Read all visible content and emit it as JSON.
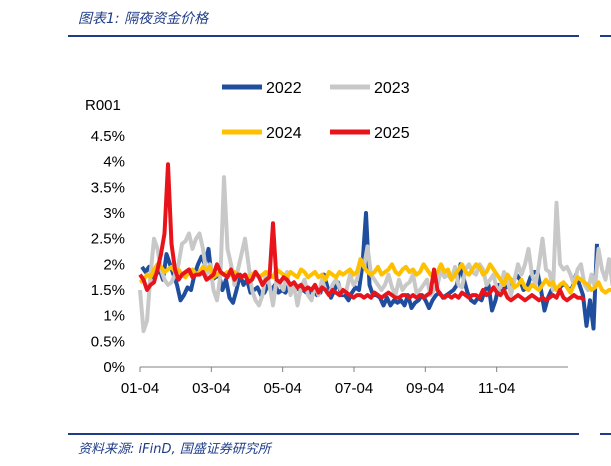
{
  "header": {
    "title": "图表1:  隔夜资金价格"
  },
  "footer": {
    "source": "资料来源:  iFinD,  国盛证券研究所"
  },
  "chart_data": {
    "type": "line",
    "ylabel": "R001",
    "ylim": [
      0,
      4.5
    ],
    "yticks": [
      "0%",
      "0.5%",
      "1%",
      "1.5%",
      "2%",
      "2.5%",
      "3%",
      "3.5%",
      "4%",
      "4.5%"
    ],
    "xticks": [
      "01-04",
      "03-04",
      "05-04",
      "07-04",
      "09-04",
      "11-04"
    ],
    "grid": false,
    "legend_position": "top",
    "series": [
      {
        "name": "2022",
        "color": "#1f4e9e",
        "x0": 2,
        "step": 3.5,
        "values": [
          1.95,
          1.85,
          1.95,
          1.75,
          1.8,
          1.9,
          1.7,
          2.2,
          2.0,
          1.8,
          1.6,
          1.3,
          1.4,
          1.55,
          1.5,
          1.8,
          2.0,
          2.15,
          2.0,
          2.3,
          1.7,
          1.75,
          1.8,
          1.5,
          1.7,
          1.35,
          1.25,
          1.5,
          1.8,
          1.6,
          1.7,
          1.45,
          1.5,
          1.55,
          1.4,
          1.45,
          1.6,
          1.5,
          1.6,
          1.45,
          1.5,
          1.45,
          1.6,
          1.6,
          1.55,
          1.5,
          1.5,
          1.45,
          1.45,
          1.5,
          1.4,
          1.45,
          1.8,
          1.55,
          1.35,
          1.5,
          1.65,
          1.4,
          1.4,
          1.3,
          1.45,
          1.55,
          1.5,
          2.0,
          3.0,
          1.6,
          1.4,
          1.4,
          1.35,
          1.2,
          1.35,
          1.2,
          1.3,
          1.25,
          1.3,
          1.2,
          1.4,
          1.15,
          1.25,
          1.3,
          1.4,
          1.3,
          1.15,
          1.3,
          1.4,
          1.45,
          1.35,
          1.4,
          1.45,
          1.5,
          1.6,
          2.0,
          1.7,
          1.45,
          1.3,
          1.25,
          1.35,
          1.3,
          1.5,
          1.6,
          1.1,
          1.3,
          1.6,
          1.5,
          1.55,
          1.6,
          1.65,
          1.8,
          1.7,
          1.5,
          1.55,
          1.75,
          1.85,
          1.85,
          1.5,
          1.1,
          1.35,
          1.5,
          1.55,
          1.5,
          1.6,
          1.6,
          1.5,
          1.55,
          1.8,
          1.6,
          1.4,
          0.8,
          1.3,
          0.75,
          2.4
        ]
      },
      {
        "name": "2023",
        "color": "#c8c8c8",
        "x0": 0,
        "step": 3.5,
        "values": [
          1.5,
          0.7,
          0.9,
          1.8,
          2.5,
          2.3,
          1.9,
          1.7,
          1.6,
          1.65,
          1.8,
          2.0,
          2.4,
          2.45,
          2.6,
          2.3,
          2.5,
          2.6,
          2.3,
          1.8,
          2.0,
          1.5,
          1.3,
          1.8,
          3.7,
          2.3,
          2.0,
          1.6,
          1.9,
          2.2,
          2.5,
          2.0,
          1.5,
          1.3,
          1.2,
          1.4,
          1.85,
          1.6,
          1.2,
          1.7,
          1.6,
          1.5,
          1.85,
          1.4,
          1.6,
          1.2,
          1.55,
          1.7,
          1.4,
          1.3,
          1.6,
          1.4,
          1.7,
          1.5,
          1.4,
          1.6,
          1.7,
          1.55,
          1.45,
          1.5,
          1.8,
          1.6,
          1.7,
          2.1,
          1.95,
          2.35,
          1.8,
          1.7,
          1.6,
          1.5,
          1.6,
          1.8,
          1.55,
          1.4,
          1.7,
          1.5,
          1.6,
          1.65,
          1.8,
          1.45,
          1.5,
          1.6,
          1.7,
          1.4,
          1.5,
          1.6,
          1.9,
          1.75,
          1.8,
          1.7,
          1.95,
          1.6,
          1.55,
          1.9,
          2.0,
          1.85,
          1.8,
          2.0,
          1.9,
          1.6,
          1.7,
          1.8,
          1.5,
          1.55,
          1.85,
          1.7,
          1.4,
          1.7,
          2.0,
          1.8,
          2.0,
          2.3,
          1.8,
          1.6,
          2.0,
          2.5,
          1.9,
          1.85,
          1.5,
          3.2,
          2.0,
          1.9,
          1.95,
          1.8,
          1.6,
          1.9,
          2.0,
          1.6,
          1.5,
          1.8,
          1.55,
          2.3,
          1.9,
          1.7,
          2.1,
          1.6,
          1.5
        ]
      },
      {
        "name": "2024",
        "color": "#ffc000",
        "x0": 0,
        "step": 3.5,
        "values": [
          1.65,
          1.7,
          1.8,
          1.75,
          1.9,
          2.0,
          1.95,
          1.85,
          1.9,
          1.95,
          1.85,
          1.9,
          1.8,
          1.75,
          1.85,
          1.9,
          1.8,
          1.85,
          1.95,
          1.9,
          1.95,
          1.75,
          1.8,
          1.85,
          1.8,
          1.85,
          1.8,
          1.85,
          1.8,
          1.75,
          1.8,
          1.75,
          1.8,
          1.85,
          1.75,
          1.8,
          1.85,
          1.8,
          1.75,
          1.9,
          1.85,
          1.8,
          1.75,
          1.85,
          1.8,
          1.75,
          1.9,
          1.85,
          1.75,
          1.8,
          1.85,
          1.75,
          1.8,
          1.7,
          1.85,
          1.8,
          1.75,
          1.85,
          1.8,
          1.85,
          1.9,
          1.8,
          1.85,
          2.1,
          1.95,
          1.85,
          1.8,
          1.85,
          1.95,
          1.8,
          1.85,
          1.9,
          2.0,
          1.85,
          1.8,
          1.9,
          1.95,
          1.85,
          1.9,
          1.8,
          1.85,
          2.0,
          1.9,
          1.8,
          1.75,
          1.85,
          2.0,
          1.85,
          1.9,
          1.7,
          1.8,
          1.9,
          2.0,
          1.85,
          1.8,
          1.9,
          2.0,
          1.95,
          1.8,
          1.85,
          2.0,
          1.9,
          1.8,
          1.7,
          1.6,
          1.8,
          1.7,
          1.55,
          1.6,
          1.7,
          1.55,
          1.5,
          1.6,
          1.55,
          1.5,
          1.6,
          1.7,
          1.6,
          1.65,
          1.5,
          1.6,
          1.65,
          1.55,
          1.45,
          1.6,
          1.75,
          1.7,
          1.65,
          1.6,
          1.5,
          1.55,
          1.65,
          1.5,
          1.45,
          1.5,
          1.5
        ]
      },
      {
        "name": "2025",
        "color": "#e8141c",
        "x0": 0,
        "step": 3.5,
        "values": [
          1.8,
          1.7,
          1.5,
          1.6,
          1.65,
          1.9,
          2.2,
          2.6,
          3.95,
          2.4,
          1.9,
          1.7,
          1.8,
          1.85,
          1.9,
          1.75,
          1.8,
          1.8,
          1.85,
          1.7,
          1.75,
          1.8,
          2.0,
          1.85,
          1.8,
          1.75,
          1.9,
          1.7,
          1.8,
          1.75,
          1.8,
          1.65,
          1.7,
          1.85,
          1.75,
          1.6,
          1.7,
          1.75,
          2.8,
          1.7,
          1.65,
          1.75,
          1.7,
          1.6,
          1.65,
          1.55,
          1.6,
          1.5,
          1.55,
          1.5,
          1.6,
          1.45,
          1.55,
          1.5,
          1.4,
          1.5,
          1.45,
          1.4,
          1.5,
          1.45,
          1.4,
          1.35,
          1.4,
          1.4,
          1.35,
          1.4,
          1.35,
          1.45,
          1.4,
          1.35,
          1.4,
          1.45,
          1.4,
          1.35,
          1.35,
          1.4,
          1.4,
          1.35,
          1.4,
          1.35,
          1.4,
          1.35,
          1.4,
          1.45,
          1.9,
          1.5,
          1.4,
          1.35,
          1.4,
          1.35,
          1.4,
          1.35,
          1.45,
          1.4,
          1.35,
          1.4,
          1.4,
          1.35,
          1.5,
          1.4,
          1.45,
          1.55,
          1.45,
          1.4,
          1.5,
          1.35,
          1.3,
          1.35,
          1.4,
          1.35,
          1.3,
          1.35,
          1.4,
          1.35,
          1.3,
          1.35,
          1.3,
          1.35,
          1.4,
          1.35,
          1.5,
          1.35,
          1.3,
          1.35,
          1.4,
          1.35,
          1.35,
          1.3
        ]
      }
    ]
  }
}
